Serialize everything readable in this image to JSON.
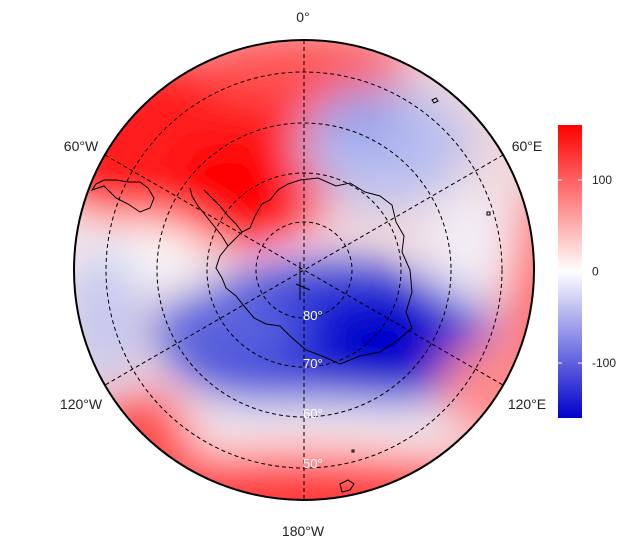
{
  "map": {
    "projection": "south-polar-stereographic",
    "field_type": "filled-contour-anomaly",
    "longitude_labels": {
      "deg0": "0°",
      "deg60e": "60°E",
      "deg120e": "120°E",
      "deg180": "180°W",
      "deg120w": "120°W",
      "deg60w": "60°W"
    },
    "latitude_labels": [
      "80°",
      "70°",
      "60°",
      "50°"
    ],
    "colors": {
      "positive": "#ff0000",
      "neutral": "#ffffff",
      "negative": "#0000cc",
      "coastline": "#000000",
      "graticule": "#000000"
    }
  },
  "colorbar": {
    "range": [
      -160,
      160
    ],
    "tick_labels": [
      "100",
      "0",
      "-100"
    ],
    "tick_values": [
      100,
      0,
      -100
    ]
  }
}
